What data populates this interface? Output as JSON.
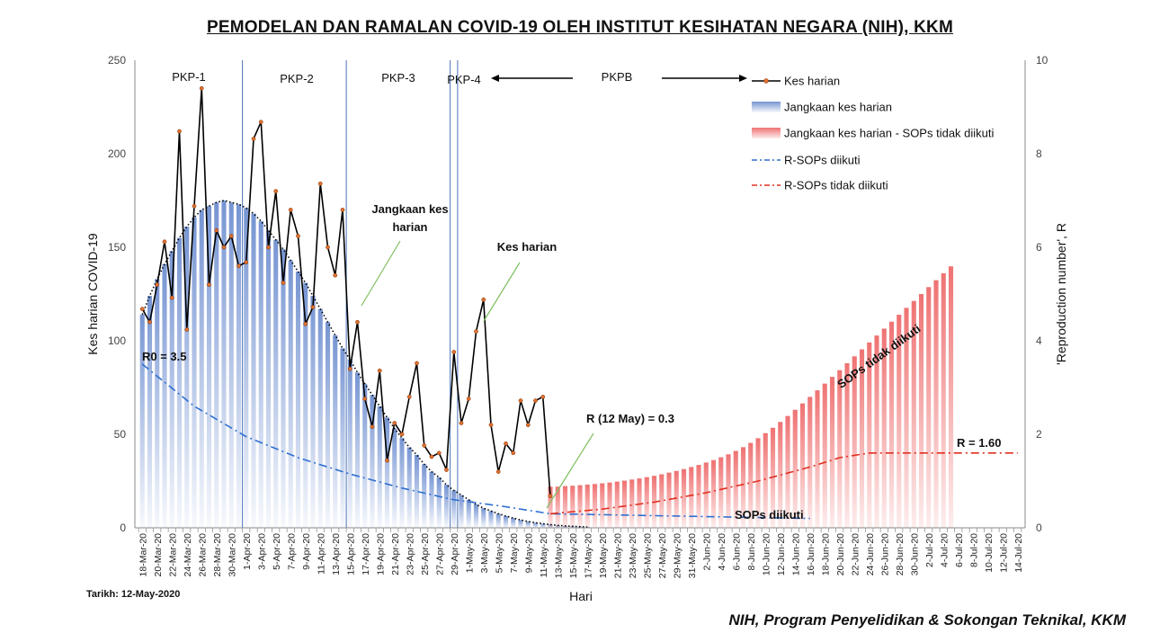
{
  "title": "PEMODELAN DAN RAMALAN COVID-19 OLEH INSTITUT KESIHATAN NEGARA (NIH), KKM",
  "date_note": "Tarikh: 12-May-2020",
  "credit": "NIH, Program Penyelidikan & Sokongan Teknikal, KKM",
  "colors": {
    "daily_line": "#000000",
    "daily_marker": "#e07030",
    "band_blue": "#6f8fd0",
    "band_red": "#ee6b6b",
    "r_followed": "#2f6fd0",
    "r_not_followed": "#e03020",
    "phase_line": "#4a73b8"
  },
  "chart_data": {
    "type": "line",
    "xlabel": "Hari",
    "ylabel": "Kes harian COVID-19",
    "ylabel_right": "'Reproduction number', R",
    "ylim": [
      0,
      250
    ],
    "ylim_right": [
      0,
      10
    ],
    "yticks": [
      "0",
      "50",
      "100",
      "150",
      "200",
      "250"
    ],
    "yticks_right": [
      "0",
      "2",
      "4",
      "6",
      "8",
      "10"
    ],
    "x_tick_labels": [
      "18-Mar-20",
      "20-Mar-20",
      "22-Mar-20",
      "24-Mar-20",
      "26-Mar-20",
      "28-Mar-20",
      "30-Mar-20",
      "1-Apr-20",
      "3-Apr-20",
      "5-Apr-20",
      "7-Apr-20",
      "9-Apr-20",
      "11-Apr-20",
      "13-Apr-20",
      "15-Apr-20",
      "17-Apr-20",
      "19-Apr-20",
      "21-Apr-20",
      "23-Apr-20",
      "25-Apr-20",
      "27-Apr-20",
      "29-Apr-20",
      "1-May-20",
      "3-May-20",
      "5-May-20",
      "7-May-20",
      "9-May-20",
      "11-May-20",
      "13-May-20",
      "15-May-20",
      "17-May-20",
      "19-May-20",
      "21-May-20",
      "23-May-20",
      "25-May-20",
      "27-May-20",
      "29-May-20",
      "31-May-20",
      "2-Jun-20",
      "4-Jun-20",
      "6-Jun-20",
      "8-Jun-20",
      "10-Jun-20",
      "12-Jun-20",
      "14-Jun-20",
      "16-Jun-20",
      "18-Jun-20",
      "20-Jun-20",
      "22-Jun-20",
      "24-Jun-20",
      "26-Jun-20",
      "28-Jun-20",
      "30-Jun-20",
      "2-Jul-20",
      "4-Jul-20",
      "6-Jul-20",
      "8-Jul-20",
      "10-Jul-20",
      "12-Jul-20",
      "14-Jul-20"
    ],
    "phases": [
      {
        "label": "PKP-1",
        "start_day": 0
      },
      {
        "label": "PKP-2",
        "start_day": 14
      },
      {
        "label": "PKP-3",
        "start_day": 28
      },
      {
        "label": "PKP-4",
        "start_day": 42
      },
      {
        "label": "PKPB",
        "start_day": 47
      }
    ],
    "series": [
      {
        "name": "Kes harian",
        "start_date": "18-Mar-20",
        "values": [
          117,
          110,
          130,
          153,
          123,
          212,
          106,
          172,
          235,
          130,
          159,
          150,
          156,
          140,
          142,
          208,
          217,
          150,
          180,
          131,
          170,
          156,
          109,
          118,
          184,
          150,
          135,
          170,
          85,
          110,
          69,
          54,
          84,
          36,
          56,
          50,
          70,
          88,
          44,
          38,
          40,
          31,
          94,
          56,
          69,
          105,
          122,
          55,
          30,
          45,
          40,
          68,
          55,
          68,
          70,
          17
        ]
      },
      {
        "name": "Jangkaan kes harian",
        "start_date": "18-Mar-20",
        "values": [
          114,
          124,
          133,
          141,
          148,
          155,
          161,
          166,
          170,
          172,
          174,
          175,
          174,
          173,
          171,
          168,
          164,
          159,
          154,
          149,
          143,
          137,
          131,
          124,
          117,
          110,
          103,
          96,
          90,
          83,
          77,
          71,
          65,
          59,
          53,
          48,
          43,
          39,
          34,
          30,
          27,
          23,
          20,
          17.5,
          15,
          12.5,
          10.5,
          9,
          7.5,
          6.3,
          5.2,
          4.2,
          3.4,
          2.7,
          2.2,
          1.7,
          1.3,
          1,
          0.8,
          0.6,
          0.4
        ]
      },
      {
        "name": "Jangkaan kes harian - SOPs tidak diikuti",
        "start_date": "12-May-20",
        "values": [
          22,
          22,
          22.3,
          22.5,
          22.8,
          23.1,
          23.4,
          23.8,
          24.2,
          24.7,
          25.2,
          25.8,
          26.4,
          27.1,
          27.8,
          28.6,
          29.5,
          30.4,
          31.4,
          32.5,
          33.6,
          34.9,
          36.2,
          37.7,
          39.3,
          41.1,
          43.1,
          45.4,
          47.9,
          50.6,
          53.5,
          56.6,
          59.8,
          63.1,
          66.5,
          70,
          73.5,
          77.1,
          80.7,
          84.3,
          88,
          91.7,
          95.4,
          99.1,
          102.8,
          106.5,
          110.2,
          113.9,
          117.6,
          121.3,
          125,
          128.7,
          132.4,
          136.1,
          139.8
        ]
      },
      {
        "name": "R-SOPs diikuti",
        "x": [
          "18-Mar-20",
          "25-Mar-20",
          "1-Apr-20",
          "8-Apr-20",
          "15-Apr-20",
          "22-Apr-20",
          "29-Apr-20",
          "6-May-20",
          "12-May-20",
          "16-Jun-20"
        ],
        "values": [
          3.5,
          2.6,
          1.95,
          1.5,
          1.15,
          0.85,
          0.6,
          0.45,
          0.3,
          0.2
        ]
      },
      {
        "name": "R-SOPs tidak diikuti",
        "x": [
          "12-May-20",
          "19-May-20",
          "26-May-20",
          "2-Jun-20",
          "9-Jun-20",
          "16-Jun-20",
          "20-Jun-20",
          "24-Jun-20",
          "4-Jul-20",
          "14-Jul-20"
        ],
        "values": [
          0.3,
          0.4,
          0.55,
          0.75,
          1.0,
          1.3,
          1.5,
          1.6,
          1.6,
          1.6
        ]
      }
    ],
    "legend": [
      "Kes harian",
      "Jangkaan kes harian",
      "Jangkaan kes harian - SOPs tidak diikuti",
      "R-SOPs diikuti",
      "R-SOPs tidak diikuti"
    ],
    "legend_position": "top-right",
    "annotations": {
      "jangkaan": "Jangkaan kes harian",
      "kes_harian": "Kes harian",
      "r0": "R0 = 3.5",
      "r_may": "R (12 May) = 0.3",
      "r_160": "R = 1.60",
      "sops_tidak": "SOPs tidak diikuti",
      "sops_diikuti": "SOPs diikuti"
    },
    "grid": false
  }
}
